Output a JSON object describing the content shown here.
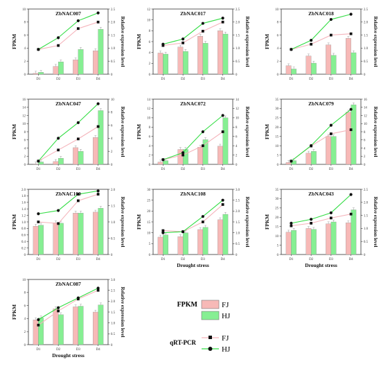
{
  "colors": {
    "fj_bar": "#f7b9b7",
    "hj_bar": "#86ef93",
    "fj_line": "#f5b4bb",
    "hj_line": "#33dd44",
    "marker": "#111111",
    "axis": "#333333"
  },
  "legend": {
    "fpkm_label": "FPKM",
    "qrt_label": "qRT-PCR",
    "fj": "FJ",
    "hj": "HJ"
  },
  "xlabel": "Drought stress",
  "chart_data": [
    {
      "type": "bar",
      "title": "ZbNAC007",
      "categories": [
        "D1",
        "D2",
        "D3",
        "D4"
      ],
      "ylabel": "FPKM",
      "y2label": "Relative expression level",
      "ylim": [
        0,
        10
      ],
      "y_ticks": [
        0,
        2,
        4,
        6,
        8,
        10
      ],
      "y2lim": [
        0,
        2.5
      ],
      "y2_ticks": [
        0,
        0.5,
        1.0,
        1.5,
        2.0,
        2.5
      ],
      "series": [
        {
          "name": "FJ",
          "kind": "bar",
          "axis": "left",
          "values": [
            0.15,
            1.2,
            2.2,
            3.6
          ]
        },
        {
          "name": "HJ",
          "kind": "bar",
          "axis": "left",
          "values": [
            0.3,
            1.9,
            3.8,
            6.9
          ]
        },
        {
          "name": "FJ",
          "kind": "line",
          "axis": "right",
          "values": [
            0.95,
            1.1,
            1.75,
            2.0
          ]
        },
        {
          "name": "HJ",
          "kind": "line",
          "axis": "right",
          "values": [
            0.95,
            1.4,
            2.05,
            2.35
          ]
        }
      ]
    },
    {
      "type": "bar",
      "title": "ZbNAC017",
      "categories": [
        "D1",
        "D2",
        "D3",
        "D4"
      ],
      "ylabel": "FPKM",
      "y2label": "Relative expression level",
      "ylim": [
        0,
        12
      ],
      "y_ticks": [
        0,
        2,
        4,
        6,
        8,
        10,
        12
      ],
      "y2lim": [
        0,
        2.5
      ],
      "y2_ticks": [
        0,
        0.5,
        1.0,
        1.5,
        2.0,
        2.5
      ],
      "series": [
        {
          "name": "FJ",
          "kind": "bar",
          "axis": "left",
          "values": [
            3.9,
            5.0,
            7.0,
            8.0
          ]
        },
        {
          "name": "HJ",
          "kind": "bar",
          "axis": "left",
          "values": [
            3.7,
            4.2,
            5.7,
            7.4
          ]
        },
        {
          "name": "FJ",
          "kind": "line",
          "axis": "right",
          "values": [
            1.1,
            1.2,
            1.65,
            2.0
          ]
        },
        {
          "name": "HJ",
          "kind": "line",
          "axis": "right",
          "values": [
            1.15,
            1.35,
            1.95,
            2.15
          ]
        }
      ]
    },
    {
      "type": "bar",
      "title": "ZbNAC018",
      "categories": [
        "D1",
        "D2",
        "D3",
        "D4"
      ],
      "ylabel": "FPKM",
      "y2label": "Relative expression level",
      "ylim": [
        0,
        10
      ],
      "y_ticks": [
        0,
        2,
        4,
        6,
        8,
        10
      ],
      "y2lim": [
        0,
        2.5
      ],
      "y2_ticks": [
        0,
        0.5,
        1.0,
        1.5,
        2.0,
        2.5
      ],
      "series": [
        {
          "name": "FJ",
          "kind": "bar",
          "axis": "left",
          "values": [
            1.3,
            2.8,
            4.5,
            5.5
          ]
        },
        {
          "name": "HJ",
          "kind": "bar",
          "axis": "left",
          "values": [
            0.8,
            1.7,
            2.9,
            3.3
          ]
        },
        {
          "name": "FJ",
          "kind": "line",
          "axis": "right",
          "values": [
            0.95,
            1.15,
            1.5,
            1.55
          ]
        },
        {
          "name": "HJ",
          "kind": "line",
          "axis": "right",
          "values": [
            0.95,
            1.3,
            2.1,
            2.3
          ]
        }
      ]
    },
    {
      "type": "bar",
      "title": "ZbNAC047",
      "categories": [
        "D1",
        "D2",
        "D3",
        "D4"
      ],
      "ylabel": "FPKM",
      "y2label": "Relative expression level",
      "ylim": [
        0,
        16
      ],
      "y_ticks": [
        0,
        2,
        4,
        6,
        8,
        10,
        12,
        14,
        16
      ],
      "y2lim": [
        0,
        10
      ],
      "y2_ticks": [
        0,
        2,
        4,
        6,
        8,
        10
      ],
      "series": [
        {
          "name": "FJ",
          "kind": "bar",
          "axis": "left",
          "values": [
            0.1,
            0.7,
            4.1,
            6.6
          ]
        },
        {
          "name": "HJ",
          "kind": "bar",
          "axis": "left",
          "values": [
            0.6,
            1.5,
            3.2,
            13.2
          ]
        },
        {
          "name": "FJ",
          "kind": "line",
          "axis": "right",
          "values": [
            0.5,
            2.2,
            3.9,
            5.8
          ]
        },
        {
          "name": "HJ",
          "kind": "line",
          "axis": "right",
          "values": [
            0.5,
            4.0,
            6.4,
            9.3
          ]
        }
      ]
    },
    {
      "type": "bar",
      "title": "ZbNAC072",
      "categories": [
        "D1",
        "D2",
        "D3",
        "D4"
      ],
      "ylabel": "FPKM",
      "y2label": "Relative expression level",
      "ylim": [
        0,
        14
      ],
      "y_ticks": [
        0,
        2,
        4,
        6,
        8,
        10,
        12,
        14
      ],
      "y2lim": [
        0,
        14
      ],
      "y2_ticks": [
        0,
        2,
        4,
        6,
        8,
        10,
        12,
        14
      ],
      "series": [
        {
          "name": "FJ",
          "kind": "bar",
          "axis": "left",
          "values": [
            0.5,
            3.2,
            3.7,
            3.9
          ]
        },
        {
          "name": "HJ",
          "kind": "bar",
          "axis": "left",
          "values": [
            0.8,
            3.2,
            5.3,
            10.0
          ]
        },
        {
          "name": "FJ",
          "kind": "line",
          "axis": "right",
          "values": [
            1.0,
            2.0,
            4.0,
            7.0
          ]
        },
        {
          "name": "HJ",
          "kind": "line",
          "axis": "right",
          "values": [
            1.0,
            2.5,
            7.0,
            10.5
          ]
        }
      ]
    },
    {
      "type": "bar",
      "title": "ZbNAC079",
      "categories": [
        "D1",
        "D2",
        "D3",
        "D4"
      ],
      "ylabel": "FPKM",
      "y2label": "Relative expression level",
      "ylim": [
        0,
        35
      ],
      "y_ticks": [
        0,
        5,
        10,
        15,
        20,
        25,
        30,
        35
      ],
      "y2lim": [
        0,
        16
      ],
      "y2_ticks": [
        0,
        2,
        4,
        6,
        8,
        10,
        12,
        14,
        16
      ],
      "series": [
        {
          "name": "FJ",
          "kind": "bar",
          "axis": "left",
          "values": [
            1.0,
            6.0,
            15.0,
            28.0
          ]
        },
        {
          "name": "HJ",
          "kind": "bar",
          "axis": "left",
          "values": [
            2.0,
            7.0,
            15.0,
            32.0
          ]
        },
        {
          "name": "FJ",
          "kind": "line",
          "axis": "right",
          "values": [
            0.8,
            4.5,
            7.5,
            8.5
          ]
        },
        {
          "name": "HJ",
          "kind": "line",
          "axis": "right",
          "values": [
            0.8,
            4.6,
            9.6,
            13.5
          ]
        }
      ]
    },
    {
      "type": "bar",
      "title": "ZbNAC100",
      "categories": [
        "D1",
        "D2",
        "D3",
        "D4"
      ],
      "ylabel": "FPKM",
      "y2label": "Relative expression level",
      "ylim": [
        0,
        2.0
      ],
      "y_ticks": [
        0,
        0.2,
        0.4,
        0.6,
        0.8,
        1.0,
        1.2,
        1.4,
        1.6,
        1.8,
        2.0
      ],
      "y2lim": [
        0,
        2.0
      ],
      "y2_ticks": [
        0,
        0.5,
        1.0,
        1.5,
        2.0
      ],
      "series": [
        {
          "name": "FJ",
          "kind": "bar",
          "axis": "left",
          "values": [
            0.87,
            0.97,
            1.27,
            1.3
          ]
        },
        {
          "name": "HJ",
          "kind": "bar",
          "axis": "left",
          "values": [
            0.9,
            0.96,
            1.27,
            1.42
          ]
        },
        {
          "name": "FJ",
          "kind": "line",
          "axis": "right",
          "values": [
            1.0,
            0.95,
            1.65,
            1.85
          ]
        },
        {
          "name": "HJ",
          "kind": "line",
          "axis": "right",
          "values": [
            1.25,
            1.35,
            1.85,
            1.95
          ]
        }
      ]
    },
    {
      "type": "bar",
      "title": "ZbNAC108",
      "categories": [
        "D1",
        "D2",
        "D3",
        "D4"
      ],
      "ylabel": "FPKM",
      "y2label": "Relative expression level",
      "ylim": [
        0,
        30
      ],
      "y_ticks": [
        0,
        5,
        10,
        15,
        20,
        25,
        30
      ],
      "y2lim": [
        0,
        3.0
      ],
      "y2_ticks": [
        0,
        0.5,
        1.0,
        1.5,
        2.0,
        2.5,
        3.0
      ],
      "series": [
        {
          "name": "FJ",
          "kind": "bar",
          "axis": "left",
          "values": [
            8.0,
            8.2,
            11.5,
            16.0
          ]
        },
        {
          "name": "HJ",
          "kind": "bar",
          "axis": "left",
          "values": [
            9.0,
            10.0,
            12.5,
            18.5
          ]
        },
        {
          "name": "FJ",
          "kind": "line",
          "axis": "right",
          "values": [
            1.1,
            1.05,
            1.5,
            2.3
          ]
        },
        {
          "name": "HJ",
          "kind": "line",
          "axis": "right",
          "values": [
            1.0,
            1.05,
            1.75,
            2.5
          ]
        }
      ]
    },
    {
      "type": "bar",
      "title": "ZbNAC043",
      "categories": [
        "D1",
        "D2",
        "D3",
        "D4"
      ],
      "ylabel": "FPKM",
      "y2label": "Relative expression level",
      "ylim": [
        0,
        35
      ],
      "y_ticks": [
        0,
        5,
        10,
        15,
        20,
        25,
        30,
        35
      ],
      "y2lim": [
        0,
        2.5
      ],
      "y2_ticks": [
        0,
        0.5,
        1.0,
        1.5,
        2.0,
        2.5
      ],
      "series": [
        {
          "name": "FJ",
          "kind": "bar",
          "axis": "left",
          "values": [
            12.0,
            14.0,
            16.5,
            17.0
          ]
        },
        {
          "name": "HJ",
          "kind": "bar",
          "axis": "left",
          "values": [
            13.0,
            13.5,
            17.5,
            24.0
          ]
        },
        {
          "name": "FJ",
          "kind": "line",
          "axis": "right",
          "values": [
            1.1,
            1.2,
            1.4,
            1.55
          ]
        },
        {
          "name": "HJ",
          "kind": "line",
          "axis": "right",
          "values": [
            1.2,
            1.35,
            1.6,
            2.3
          ]
        }
      ]
    },
    {
      "type": "bar",
      "title": "ZbNAC087",
      "categories": [
        "D1",
        "D2",
        "D3",
        "D4"
      ],
      "ylabel": "FPKM",
      "y2label": "Relative expression level",
      "ylim": [
        0,
        10
      ],
      "y_ticks": [
        0,
        2,
        4,
        6,
        8,
        10
      ],
      "y2lim": [
        0,
        3.0
      ],
      "y2_ticks": [
        0,
        0.5,
        1.0,
        1.5,
        2.0,
        2.5,
        3.0
      ],
      "series": [
        {
          "name": "FJ",
          "kind": "bar",
          "axis": "left",
          "values": [
            3.8,
            5.5,
            5.8,
            5.0
          ]
        },
        {
          "name": "HJ",
          "kind": "bar",
          "axis": "left",
          "values": [
            4.1,
            4.6,
            5.9,
            6.1
          ]
        },
        {
          "name": "FJ",
          "kind": "line",
          "axis": "right",
          "values": [
            0.9,
            1.55,
            2.1,
            2.5
          ]
        },
        {
          "name": "HJ",
          "kind": "line",
          "axis": "right",
          "values": [
            1.15,
            1.7,
            2.15,
            2.6
          ]
        }
      ]
    }
  ]
}
